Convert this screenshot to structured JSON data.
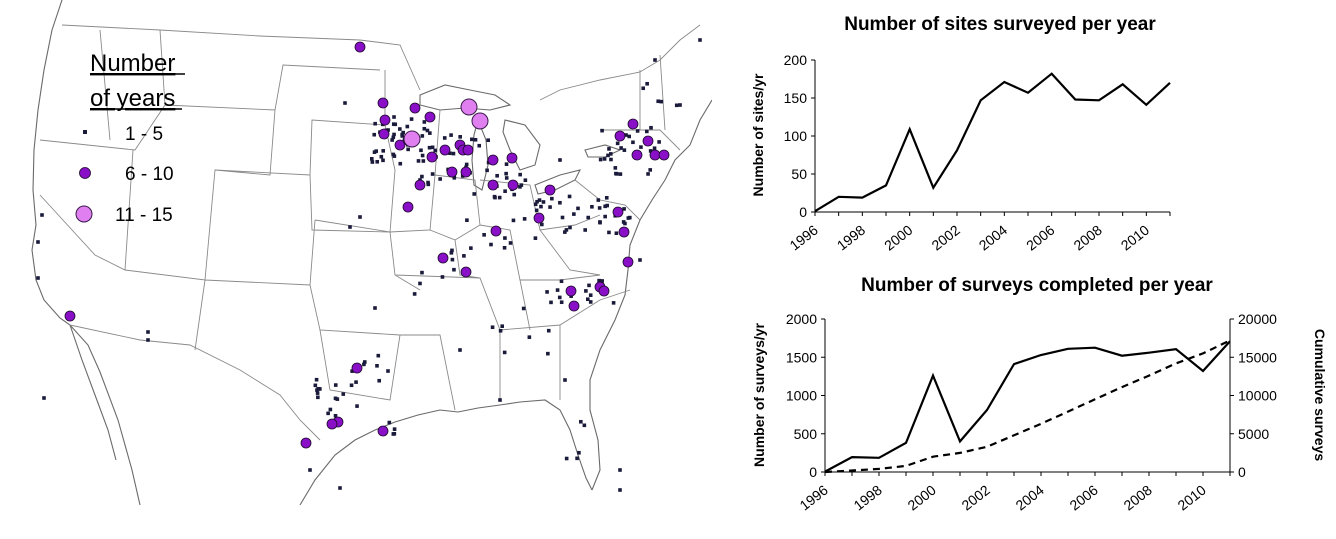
{
  "map": {
    "legend": {
      "title_line1": "Number",
      "title_line2": "of years",
      "items": [
        {
          "label": "1 - 5",
          "color": "#1a1a3a"
        },
        {
          "label": "6 - 10",
          "color": "#8a10c8"
        },
        {
          "label": "11 - 15",
          "color": "#e080f0"
        }
      ]
    }
  },
  "chart_data": [
    {
      "type": "line",
      "title": "Number of sites surveyed per year",
      "ylabel": "Number of sites/yr",
      "xlabel": "",
      "ylim": [
        0,
        200
      ],
      "yticks": [
        "0",
        "50",
        "100",
        "150",
        "200"
      ],
      "xticks": [
        "1996",
        "1998",
        "2000",
        "2002",
        "2004",
        "2006",
        "2008",
        "2010"
      ],
      "grid": false,
      "series": [
        {
          "style": "solid",
          "x": [
            1996,
            1997,
            1998,
            1999,
            2000,
            2001,
            2002,
            2003,
            2004,
            2005,
            2006,
            2007,
            2008,
            2009,
            2010,
            2011
          ],
          "values": [
            1,
            20,
            19,
            35,
            109,
            32,
            81,
            147,
            171,
            157,
            182,
            148,
            147,
            168,
            141,
            170
          ]
        }
      ]
    },
    {
      "type": "line",
      "title": "Number of surveys completed per year",
      "ylabel": "Number of surveys/yr",
      "y2label": "Cumulative surveys",
      "xlabel": "",
      "ylim": [
        0,
        2000
      ],
      "y2lim": [
        0,
        20000
      ],
      "yticks": [
        "0",
        "500",
        "1000",
        "1500",
        "2000"
      ],
      "y2ticks": [
        "0",
        "5000",
        "10000",
        "15000",
        "20000"
      ],
      "xticks": [
        "1996",
        "1998",
        "2000",
        "2002",
        "2004",
        "2006",
        "2008",
        "2010"
      ],
      "grid": false,
      "series": [
        {
          "style": "solid",
          "axis": "left",
          "x": [
            1996,
            1997,
            1998,
            1999,
            2000,
            2001,
            2002,
            2003,
            2004,
            2005,
            2006,
            2007,
            2008,
            2009,
            2010,
            2011
          ],
          "values": [
            5,
            195,
            185,
            380,
            1260,
            400,
            810,
            1410,
            1530,
            1610,
            1625,
            1520,
            1560,
            1605,
            1320,
            1710
          ]
        },
        {
          "style": "dashed",
          "axis": "right",
          "x": [
            1996,
            1997,
            1998,
            1999,
            2000,
            2001,
            2002,
            2003,
            2004,
            2005,
            2006,
            2007,
            2008,
            2009,
            2010,
            2011
          ],
          "values": [
            0,
            200,
            400,
            800,
            2000,
            2500,
            3300,
            4800,
            6300,
            7900,
            9500,
            11100,
            12600,
            14200,
            15500,
            17200
          ]
        }
      ]
    }
  ]
}
